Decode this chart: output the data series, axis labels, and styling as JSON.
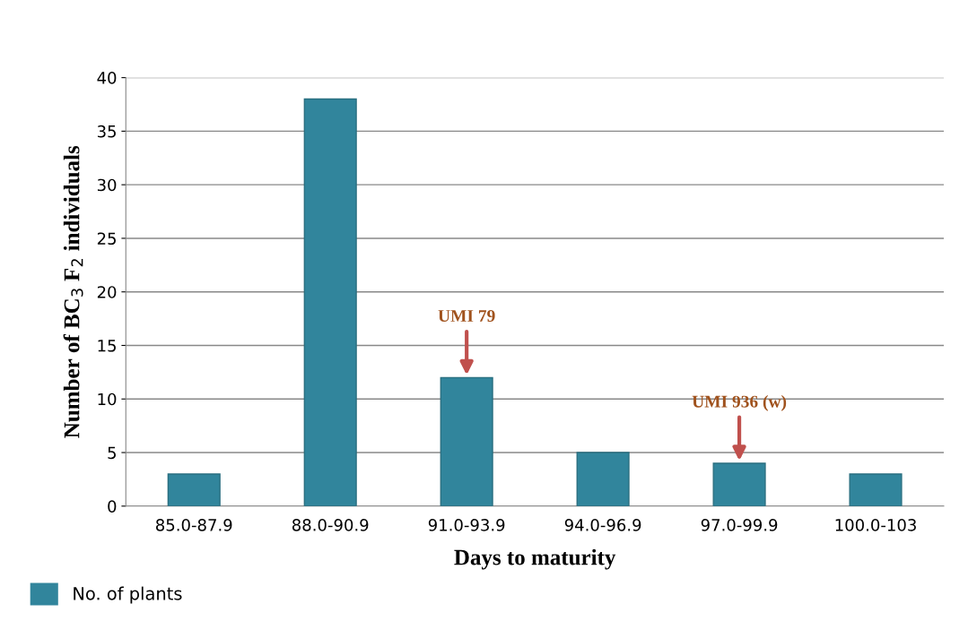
{
  "chart_data": {
    "type": "bar",
    "xlabel": "Days to maturity",
    "ylabel": "Number of BC$_{3}$ F$_{2}$ individuals",
    "categories": [
      "85.0-87.9",
      "88.0-90.9",
      "91.0-93.9",
      "94.0-96.9",
      "97.0-99.9",
      "100.0-103"
    ],
    "series": [
      {
        "name": "No. of plants",
        "color": "#31859c",
        "values": [
          3,
          38,
          12,
          5,
          4,
          3
        ]
      }
    ],
    "ylim": [
      0,
      40
    ],
    "yticks": [
      0,
      5,
      10,
      15,
      20,
      25,
      30,
      35,
      40
    ],
    "grid": "y",
    "legend": "bottom left",
    "annotations": [
      {
        "text": "UMI 79",
        "x": "91.0-93.9",
        "y": 12
      },
      {
        "text": "UMI 936 (w)",
        "x": "97.0-99.9",
        "y": 4
      }
    ]
  }
}
